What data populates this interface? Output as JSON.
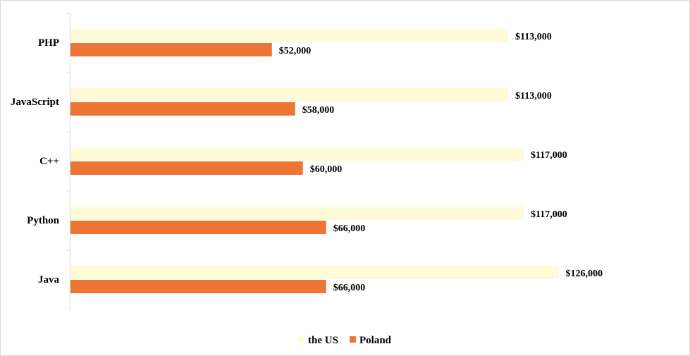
{
  "chart_data": {
    "type": "bar",
    "orientation": "horizontal",
    "categories": [
      "PHP",
      "JavaScript",
      "C++",
      "Python",
      "Java"
    ],
    "series": [
      {
        "name": "the US",
        "color": "#FFFBD9",
        "values": [
          113000,
          113000,
          117000,
          117000,
          126000
        ],
        "labels": [
          "$113,000",
          "$113,000",
          "$117,000",
          "$117,000",
          "$126,000"
        ]
      },
      {
        "name": "Poland",
        "color": "#ED7634",
        "values": [
          52000,
          58000,
          60000,
          66000,
          66000
        ],
        "labels": [
          "$52,000",
          "$58,000",
          "$60,000",
          "$66,000",
          "$66,000"
        ]
      }
    ],
    "xlim": [
      0,
      160000
    ],
    "grid": false,
    "legend_position": "bottom",
    "title": "",
    "xlabel": "",
    "ylabel": ""
  }
}
